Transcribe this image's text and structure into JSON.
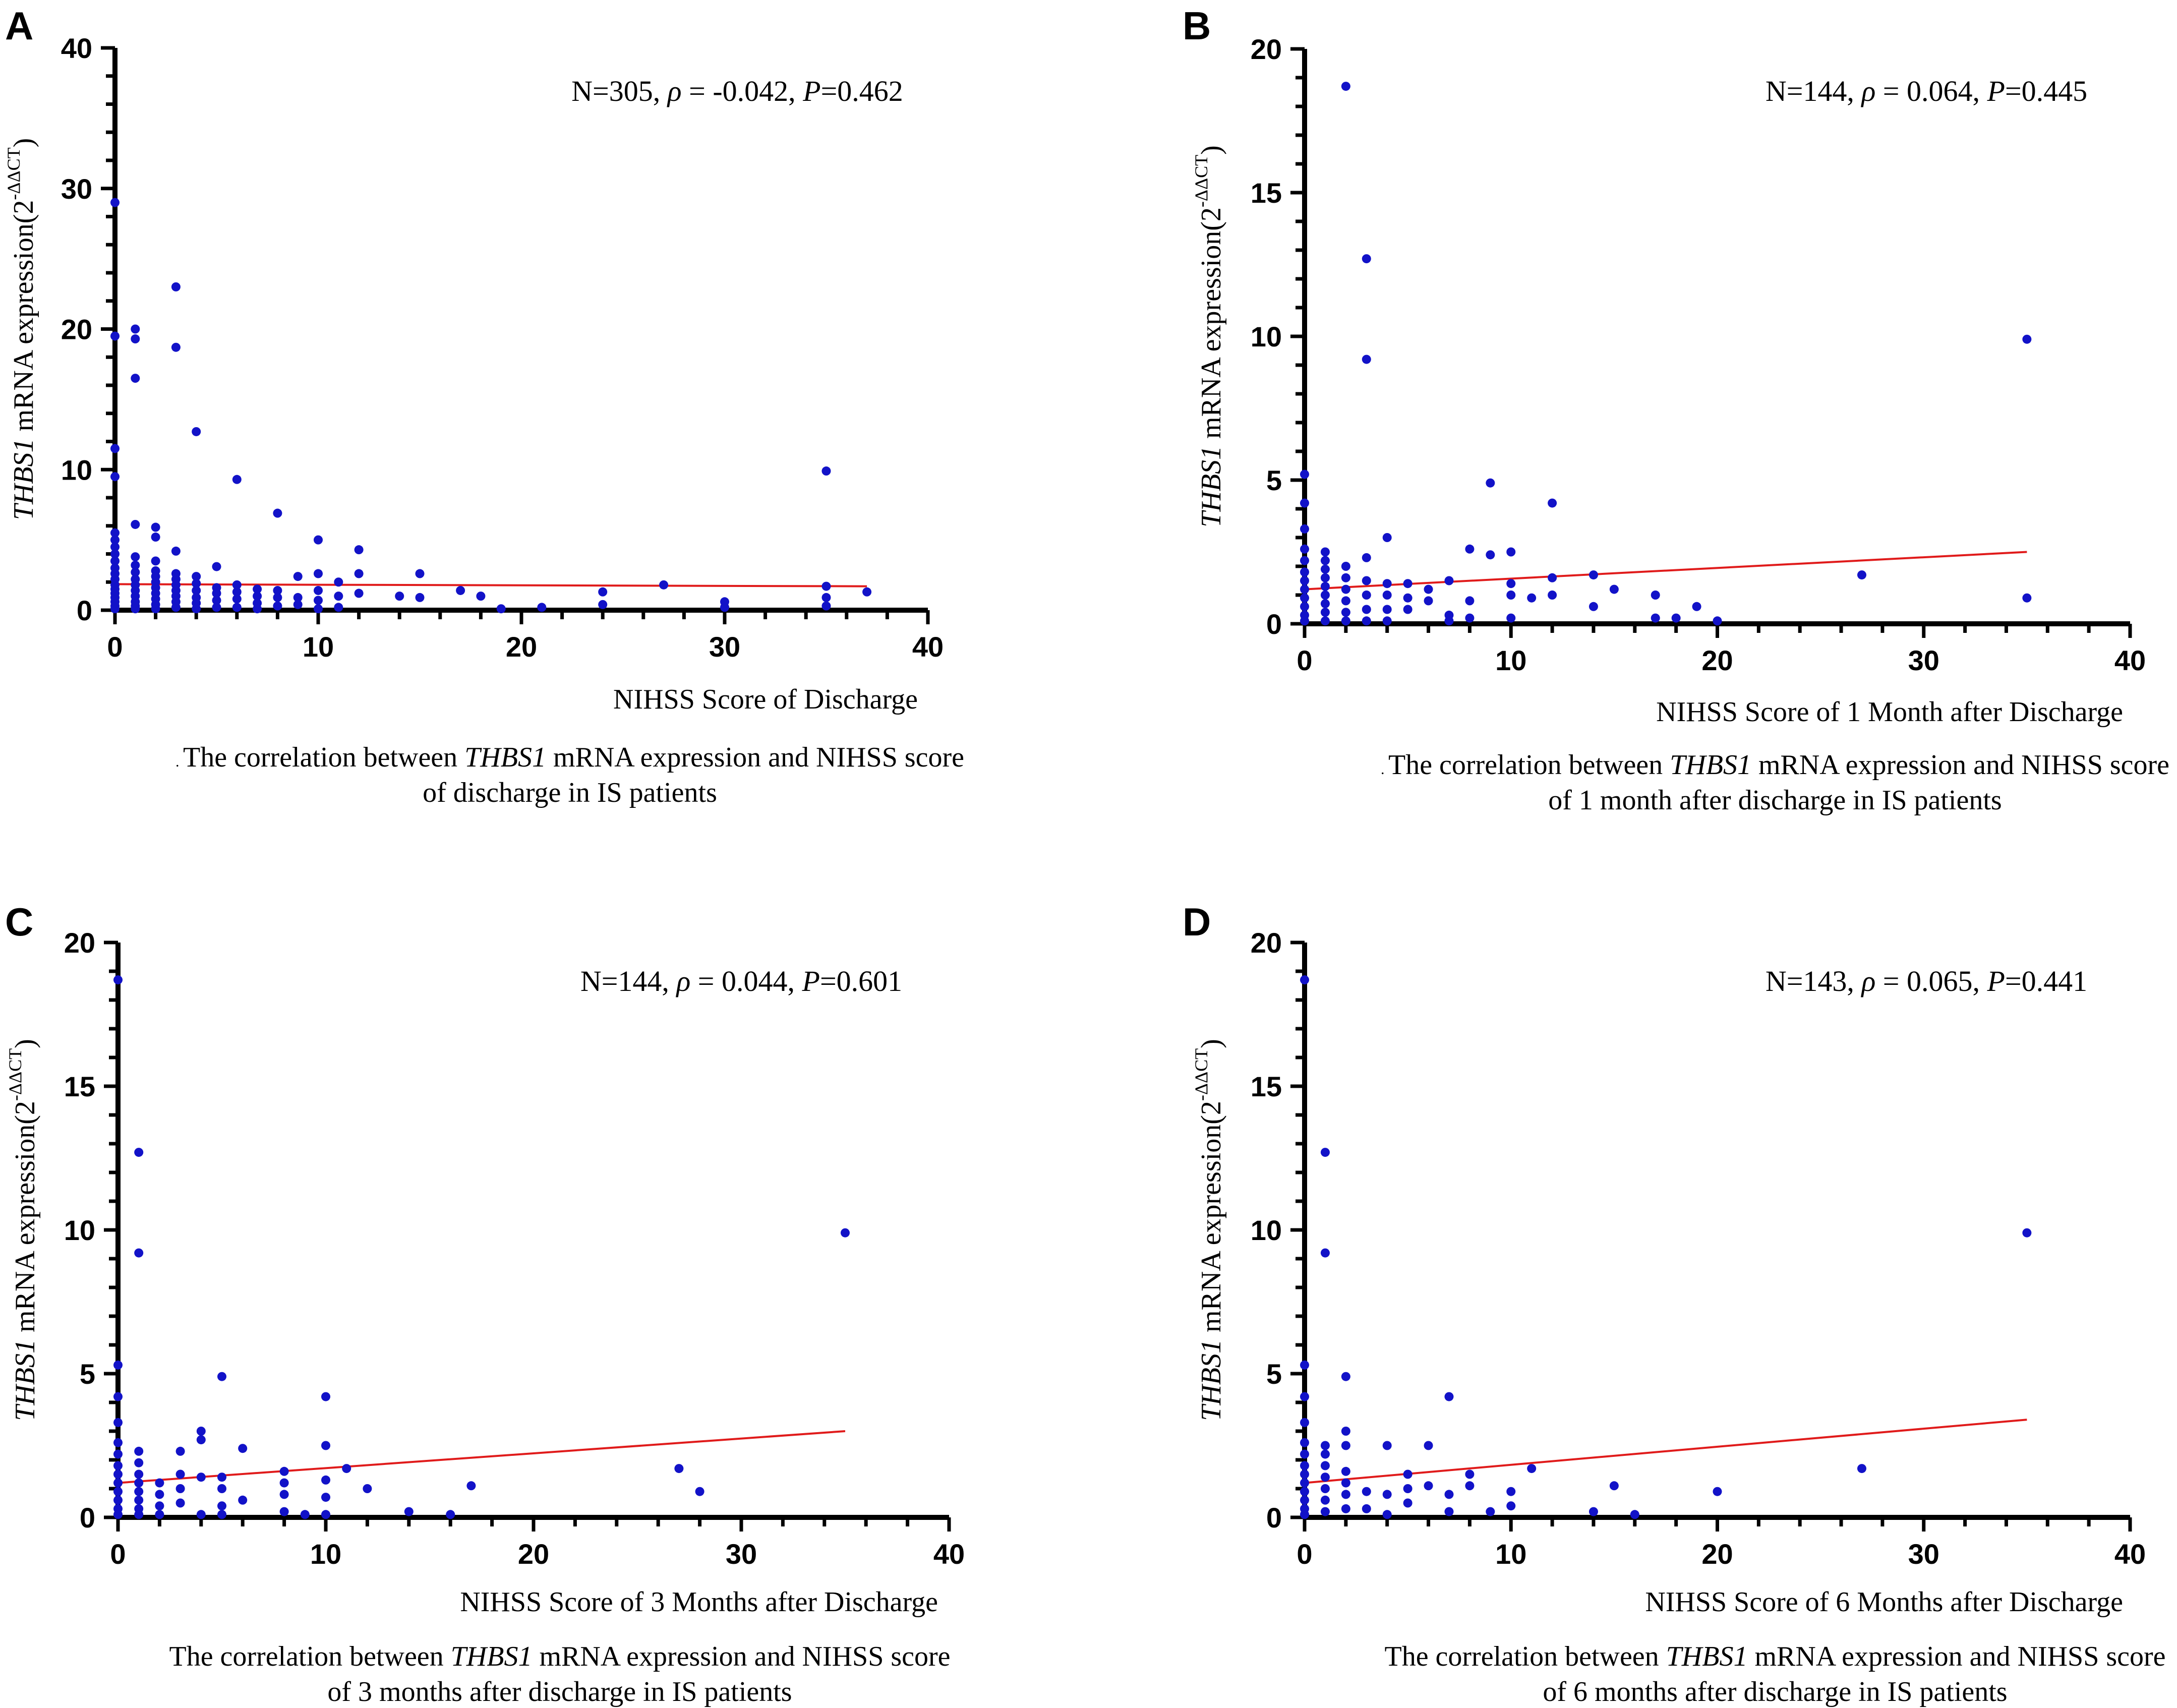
{
  "figure": {
    "accent_point_color": "#1212c8",
    "regression_line_color": "#e01b1b",
    "axis_color": "#000000"
  },
  "chart_data": [
    {
      "panel": "A",
      "type": "scatter",
      "stat_text": {
        "n": "N=305, ",
        "rho_symbol": "ρ",
        "rho": " = -0.042, ",
        "p_symbol": "P",
        "p": "=0.462"
      },
      "ylabel": {
        "gene": "THBS1",
        "rest": " mRNA expression(2",
        "exponent": "-ΔΔCT",
        "close": ")"
      },
      "xlabel": "NIHSS Score of Discharge",
      "caption": {
        "prefix": ". ",
        "line1_pre": "The correlation between ",
        "gene": "THBS1",
        "line1_post": " mRNA expression and NIHSS score",
        "line2": "of discharge in IS patients"
      },
      "xlim": [
        0,
        40
      ],
      "ylim": [
        0,
        40
      ],
      "xticks": [
        0,
        10,
        20,
        30,
        40
      ],
      "yticks": [
        0,
        10,
        20,
        30,
        40
      ],
      "regression": {
        "x": [
          0,
          37
        ],
        "y": [
          1.85,
          1.7
        ]
      },
      "points": [
        [
          0,
          29
        ],
        [
          0,
          19.5
        ],
        [
          0,
          11.5
        ],
        [
          0,
          9.5
        ],
        [
          0,
          5.5
        ],
        [
          0,
          5
        ],
        [
          0,
          4.5
        ],
        [
          0,
          4
        ],
        [
          0,
          3.5
        ],
        [
          0,
          3
        ],
        [
          0,
          2.6
        ],
        [
          0,
          2.2
        ],
        [
          0,
          1.8
        ],
        [
          0,
          1.5
        ],
        [
          0,
          1.2
        ],
        [
          0,
          0.9
        ],
        [
          0,
          0.6
        ],
        [
          0,
          0.3
        ],
        [
          0,
          0.1
        ],
        [
          1,
          20
        ],
        [
          1,
          19.3
        ],
        [
          1,
          16.5
        ],
        [
          1,
          6.1
        ],
        [
          1,
          3.8
        ],
        [
          1,
          3.2
        ],
        [
          1,
          2.7
        ],
        [
          1,
          2.2
        ],
        [
          1,
          1.8
        ],
        [
          1,
          1.4
        ],
        [
          1,
          1.0
        ],
        [
          1,
          0.6
        ],
        [
          1,
          0.3
        ],
        [
          1,
          0.1
        ],
        [
          2,
          5.9
        ],
        [
          2,
          5.2
        ],
        [
          2,
          3.5
        ],
        [
          2,
          2.8
        ],
        [
          2,
          2.4
        ],
        [
          2,
          2.0
        ],
        [
          2,
          1.6
        ],
        [
          2,
          1.2
        ],
        [
          2,
          0.8
        ],
        [
          2,
          0.4
        ],
        [
          2,
          0.1
        ],
        [
          3,
          23
        ],
        [
          3,
          18.7
        ],
        [
          3,
          4.2
        ],
        [
          3,
          2.6
        ],
        [
          3,
          2.2
        ],
        [
          3,
          1.8
        ],
        [
          3,
          1.4
        ],
        [
          3,
          1.0
        ],
        [
          3,
          0.6
        ],
        [
          3,
          0.2
        ],
        [
          4,
          12.7
        ],
        [
          4,
          2.4
        ],
        [
          4,
          1.9
        ],
        [
          4,
          1.4
        ],
        [
          4,
          0.9
        ],
        [
          4,
          0.5
        ],
        [
          4,
          0.1
        ],
        [
          5,
          3.1
        ],
        [
          5,
          1.6
        ],
        [
          5,
          1.2
        ],
        [
          5,
          0.7
        ],
        [
          5,
          0.2
        ],
        [
          6,
          9.3
        ],
        [
          6,
          1.8
        ],
        [
          6,
          1.3
        ],
        [
          6,
          0.8
        ],
        [
          6,
          0.2
        ],
        [
          7,
          1.5
        ],
        [
          7,
          1.0
        ],
        [
          7,
          0.5
        ],
        [
          7,
          0.1
        ],
        [
          8,
          6.9
        ],
        [
          8,
          1.4
        ],
        [
          8,
          0.9
        ],
        [
          8,
          0.3
        ],
        [
          9,
          2.4
        ],
        [
          9,
          0.9
        ],
        [
          9,
          0.4
        ],
        [
          10,
          5.0
        ],
        [
          10,
          2.6
        ],
        [
          10,
          1.4
        ],
        [
          10,
          0.7
        ],
        [
          10,
          0.1
        ],
        [
          11,
          2.0
        ],
        [
          11,
          1.0
        ],
        [
          11,
          0.2
        ],
        [
          12,
          4.3
        ],
        [
          12,
          2.6
        ],
        [
          12,
          1.2
        ],
        [
          14,
          1.0
        ],
        [
          15,
          2.6
        ],
        [
          15,
          0.9
        ],
        [
          17,
          1.4
        ],
        [
          18,
          1.0
        ],
        [
          19,
          0.1
        ],
        [
          21,
          0.2
        ],
        [
          24,
          1.3
        ],
        [
          24,
          0.4
        ],
        [
          27,
          1.8
        ],
        [
          30,
          0.6
        ],
        [
          30,
          0.2
        ],
        [
          35,
          9.9
        ],
        [
          35,
          1.7
        ],
        [
          35,
          0.9
        ],
        [
          35,
          0.3
        ],
        [
          37,
          1.3
        ]
      ]
    },
    {
      "panel": "B",
      "type": "scatter",
      "stat_text": {
        "n": "N=144, ",
        "rho_symbol": "ρ",
        "rho": " = 0.064, ",
        "p_symbol": "P",
        "p": "=0.445"
      },
      "ylabel": {
        "gene": "THBS1",
        "rest": " mRNA expression(2",
        "exponent": "-ΔΔCT",
        "close": ")"
      },
      "xlabel": "NIHSS Score of 1 Month after Discharge",
      "caption": {
        "prefix": ". ",
        "line1_pre": "The correlation between ",
        "gene": "THBS1",
        "line1_post": " mRNA expression and NIHSS score",
        "line2": "of 1 month after discharge in IS patients"
      },
      "xlim": [
        0,
        40
      ],
      "ylim": [
        0,
        20
      ],
      "xticks": [
        0,
        10,
        20,
        30,
        40
      ],
      "yticks": [
        0,
        5,
        10,
        15,
        20
      ],
      "regression": {
        "x": [
          0,
          35
        ],
        "y": [
          1.2,
          2.5
        ]
      },
      "points": [
        [
          0,
          5.2
        ],
        [
          0,
          4.2
        ],
        [
          0,
          3.3
        ],
        [
          0,
          2.6
        ],
        [
          0,
          2.2
        ],
        [
          0,
          1.8
        ],
        [
          0,
          1.5
        ],
        [
          0,
          1.2
        ],
        [
          0,
          0.9
        ],
        [
          0,
          0.6
        ],
        [
          0,
          0.3
        ],
        [
          0,
          0.1
        ],
        [
          1,
          2.5
        ],
        [
          1,
          2.2
        ],
        [
          1,
          1.9
        ],
        [
          1,
          1.6
        ],
        [
          1,
          1.3
        ],
        [
          1,
          1.0
        ],
        [
          1,
          0.7
        ],
        [
          1,
          0.4
        ],
        [
          1,
          0.1
        ],
        [
          2,
          18.7
        ],
        [
          2,
          2.0
        ],
        [
          2,
          1.6
        ],
        [
          2,
          1.2
        ],
        [
          2,
          0.8
        ],
        [
          2,
          0.4
        ],
        [
          2,
          0.1
        ],
        [
          3,
          12.7
        ],
        [
          3,
          9.2
        ],
        [
          3,
          2.3
        ],
        [
          3,
          1.5
        ],
        [
          3,
          1.0
        ],
        [
          3,
          0.5
        ],
        [
          3,
          0.1
        ],
        [
          4,
          3.0
        ],
        [
          4,
          1.4
        ],
        [
          4,
          1.0
        ],
        [
          4,
          0.5
        ],
        [
          4,
          0.1
        ],
        [
          5,
          1.4
        ],
        [
          5,
          0.9
        ],
        [
          5,
          0.5
        ],
        [
          6,
          1.2
        ],
        [
          6,
          0.8
        ],
        [
          7,
          1.5
        ],
        [
          7,
          0.3
        ],
        [
          7,
          0.1
        ],
        [
          8,
          2.6
        ],
        [
          8,
          0.8
        ],
        [
          8,
          0.2
        ],
        [
          9,
          4.9
        ],
        [
          9,
          2.4
        ],
        [
          10,
          2.5
        ],
        [
          10,
          1.4
        ],
        [
          10,
          1.0
        ],
        [
          10,
          0.2
        ],
        [
          11,
          0.9
        ],
        [
          12,
          4.2
        ],
        [
          12,
          1.6
        ],
        [
          12,
          1.0
        ],
        [
          14,
          1.7
        ],
        [
          14,
          0.6
        ],
        [
          15,
          1.2
        ],
        [
          17,
          1.0
        ],
        [
          17,
          0.2
        ],
        [
          18,
          0.2
        ],
        [
          19,
          0.6
        ],
        [
          20,
          0.1
        ],
        [
          27,
          1.7
        ],
        [
          35,
          9.9
        ],
        [
          35,
          0.9
        ]
      ]
    },
    {
      "panel": "C",
      "type": "scatter",
      "stat_text": {
        "n": "N=144, ",
        "rho_symbol": "ρ",
        "rho": " = 0.044, ",
        "p_symbol": "P",
        "p": "=0.601"
      },
      "ylabel": {
        "gene": "THBS1",
        "rest": " mRNA expression(2",
        "exponent": "-ΔΔCT",
        "close": ")"
      },
      "xlabel": "NIHSS Score of 3 Months after Discharge",
      "caption": {
        "prefix": "",
        "line1_pre": "The correlation between ",
        "gene": "THBS1",
        "line1_post": " mRNA expression and NIHSS score",
        "line2": "of 3 months after discharge in IS patients"
      },
      "xlim": [
        0,
        40
      ],
      "ylim": [
        0,
        20
      ],
      "xticks": [
        0,
        10,
        20,
        30,
        40
      ],
      "yticks": [
        0,
        5,
        10,
        15,
        20
      ],
      "regression": {
        "x": [
          0,
          35
        ],
        "y": [
          1.2,
          3.0
        ]
      },
      "points": [
        [
          0,
          18.7
        ],
        [
          0,
          5.3
        ],
        [
          0,
          4.2
        ],
        [
          0,
          3.3
        ],
        [
          0,
          2.6
        ],
        [
          0,
          2.2
        ],
        [
          0,
          1.8
        ],
        [
          0,
          1.5
        ],
        [
          0,
          1.2
        ],
        [
          0,
          0.9
        ],
        [
          0,
          0.6
        ],
        [
          0,
          0.3
        ],
        [
          0,
          0.1
        ],
        [
          1,
          12.7
        ],
        [
          1,
          9.2
        ],
        [
          1,
          2.3
        ],
        [
          1,
          1.9
        ],
        [
          1,
          1.5
        ],
        [
          1,
          1.2
        ],
        [
          1,
          0.9
        ],
        [
          1,
          0.6
        ],
        [
          1,
          0.3
        ],
        [
          1,
          0.1
        ],
        [
          2,
          1.2
        ],
        [
          2,
          0.8
        ],
        [
          2,
          0.4
        ],
        [
          2,
          0.1
        ],
        [
          3,
          2.3
        ],
        [
          3,
          1.5
        ],
        [
          3,
          1.0
        ],
        [
          3,
          0.5
        ],
        [
          4,
          3.0
        ],
        [
          4,
          2.7
        ],
        [
          4,
          1.4
        ],
        [
          4,
          0.1
        ],
        [
          5,
          4.9
        ],
        [
          5,
          1.4
        ],
        [
          5,
          1.0
        ],
        [
          5,
          0.4
        ],
        [
          5,
          0.1
        ],
        [
          6,
          2.4
        ],
        [
          6,
          0.6
        ],
        [
          8,
          1.6
        ],
        [
          8,
          1.2
        ],
        [
          8,
          0.8
        ],
        [
          8,
          0.2
        ],
        [
          9,
          0.1
        ],
        [
          10,
          4.2
        ],
        [
          10,
          2.5
        ],
        [
          10,
          1.3
        ],
        [
          10,
          0.7
        ],
        [
          10,
          0.1
        ],
        [
          11,
          1.7
        ],
        [
          12,
          1.0
        ],
        [
          14,
          0.2
        ],
        [
          16,
          0.1
        ],
        [
          17,
          1.1
        ],
        [
          27,
          1.7
        ],
        [
          28,
          0.9
        ],
        [
          35,
          9.9
        ]
      ]
    },
    {
      "panel": "D",
      "type": "scatter",
      "stat_text": {
        "n": "N=143, ",
        "rho_symbol": "ρ",
        "rho": " = 0.065, ",
        "p_symbol": "P",
        "p": "=0.441"
      },
      "ylabel": {
        "gene": "THBS1",
        "rest": " mRNA expression(2",
        "exponent": "-ΔΔCT",
        "close": ")"
      },
      "xlabel": "NIHSS Score of 6 Months after Discharge",
      "caption": {
        "prefix": "",
        "line1_pre": "The correlation between ",
        "gene": "THBS1",
        "line1_post": " mRNA expression and NIHSS score",
        "line2": "of 6 months after discharge in IS patients"
      },
      "xlim": [
        0,
        40
      ],
      "ylim": [
        0,
        20
      ],
      "xticks": [
        0,
        10,
        20,
        30,
        40
      ],
      "yticks": [
        0,
        5,
        10,
        15,
        20
      ],
      "regression": {
        "x": [
          0,
          35
        ],
        "y": [
          1.2,
          3.4
        ]
      },
      "points": [
        [
          0,
          18.7
        ],
        [
          0,
          5.3
        ],
        [
          0,
          4.2
        ],
        [
          0,
          3.3
        ],
        [
          0,
          2.6
        ],
        [
          0,
          2.2
        ],
        [
          0,
          1.8
        ],
        [
          0,
          1.5
        ],
        [
          0,
          1.2
        ],
        [
          0,
          0.9
        ],
        [
          0,
          0.6
        ],
        [
          0,
          0.3
        ],
        [
          0,
          0.1
        ],
        [
          1,
          12.7
        ],
        [
          1,
          9.2
        ],
        [
          1,
          2.5
        ],
        [
          1,
          2.2
        ],
        [
          1,
          1.8
        ],
        [
          1,
          1.4
        ],
        [
          1,
          1.0
        ],
        [
          1,
          0.6
        ],
        [
          1,
          0.2
        ],
        [
          2,
          4.9
        ],
        [
          2,
          3.0
        ],
        [
          2,
          2.5
        ],
        [
          2,
          1.6
        ],
        [
          2,
          1.2
        ],
        [
          2,
          0.8
        ],
        [
          2,
          0.3
        ],
        [
          3,
          0.9
        ],
        [
          3,
          0.3
        ],
        [
          4,
          2.5
        ],
        [
          4,
          0.8
        ],
        [
          4,
          0.1
        ],
        [
          5,
          1.5
        ],
        [
          5,
          1.0
        ],
        [
          5,
          0.5
        ],
        [
          6,
          2.5
        ],
        [
          6,
          1.1
        ],
        [
          7,
          4.2
        ],
        [
          7,
          0.8
        ],
        [
          7,
          0.2
        ],
        [
          8,
          1.5
        ],
        [
          8,
          1.1
        ],
        [
          9,
          0.2
        ],
        [
          10,
          0.9
        ],
        [
          10,
          0.4
        ],
        [
          11,
          1.7
        ],
        [
          14,
          0.2
        ],
        [
          15,
          1.1
        ],
        [
          16,
          0.1
        ],
        [
          20,
          0.9
        ],
        [
          27,
          1.7
        ],
        [
          35,
          9.9
        ]
      ]
    }
  ]
}
